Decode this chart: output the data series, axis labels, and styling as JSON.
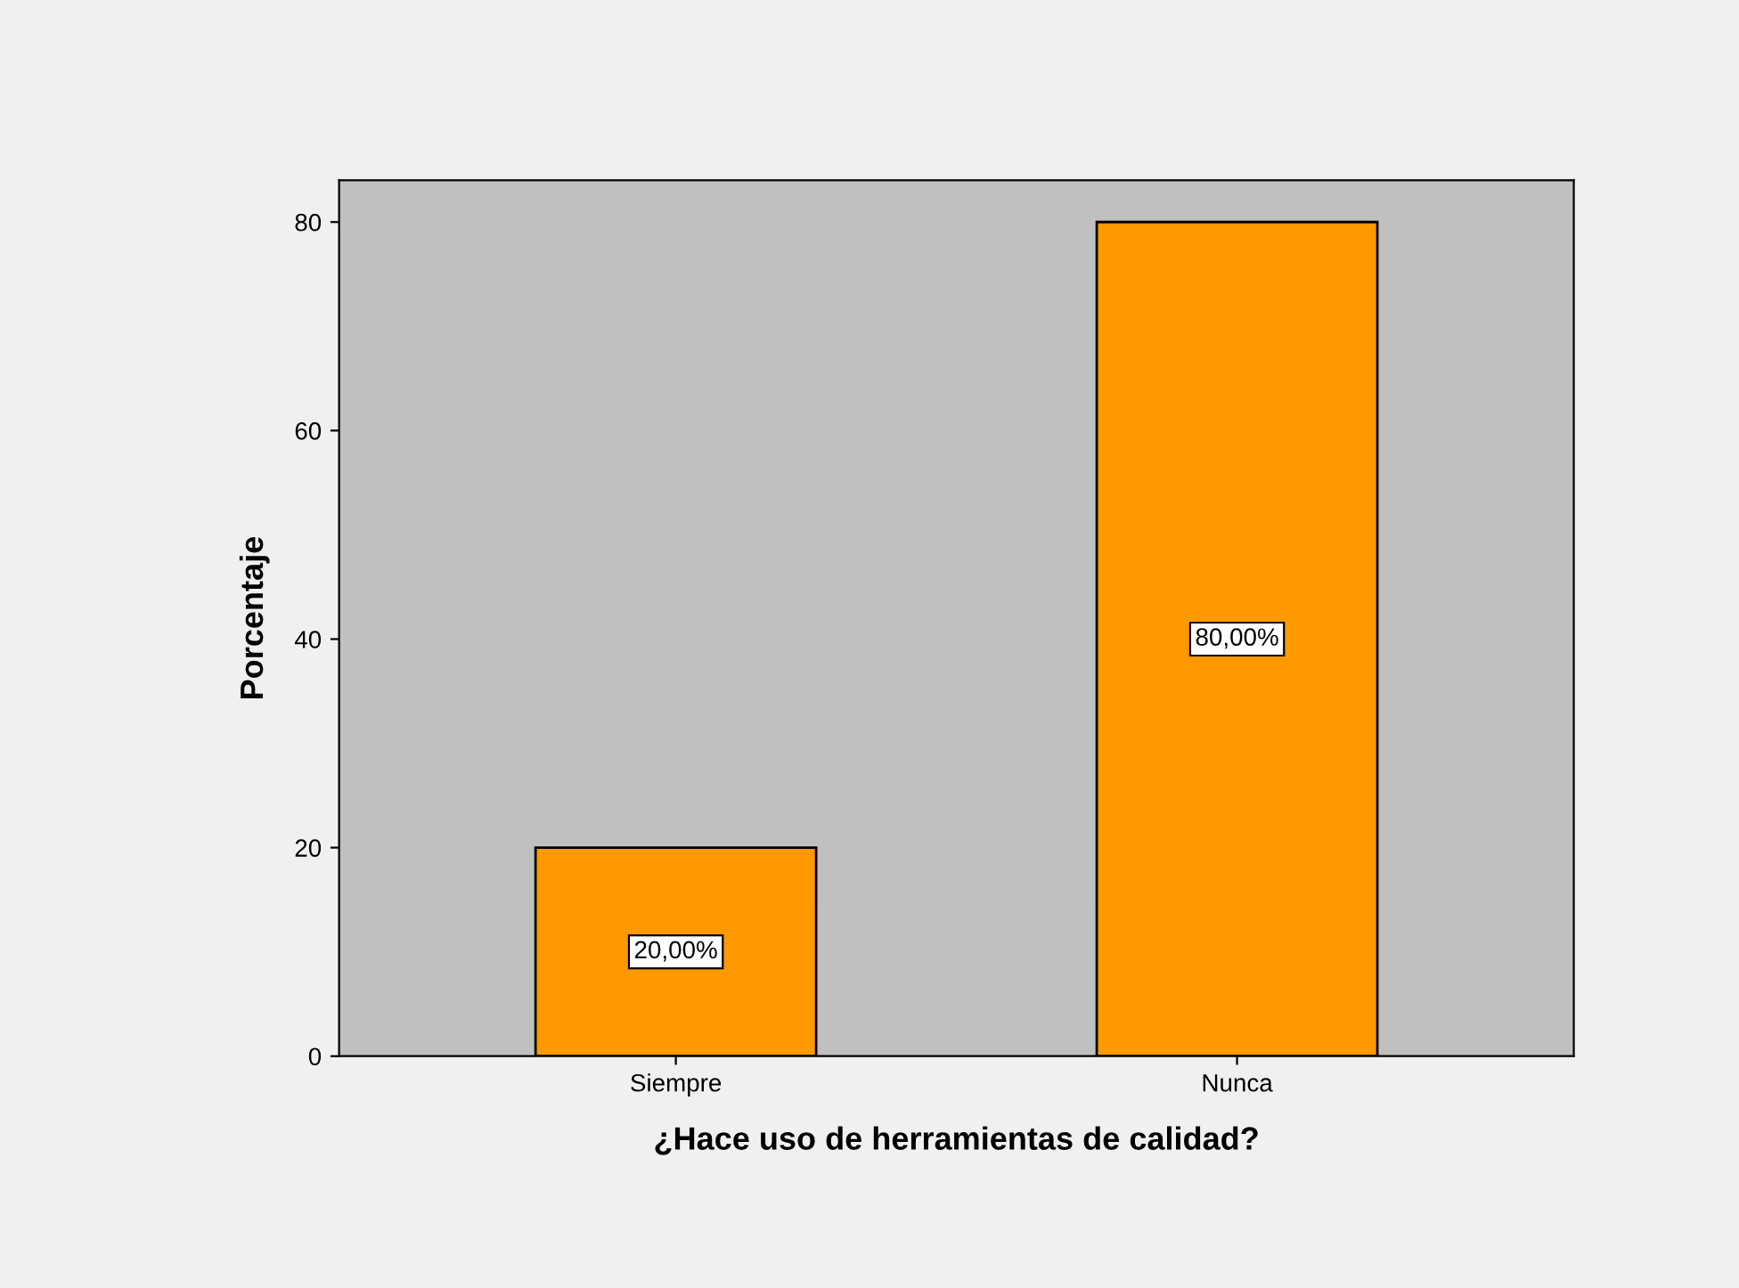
{
  "chart_data": {
    "type": "bar",
    "xlabel": "¿Hace uso de herramientas de calidad?",
    "ylabel": "Porcentaje",
    "categories": [
      "Siempre",
      "Nunca"
    ],
    "values": [
      20,
      80
    ],
    "color": "#ff9900",
    "value_labels": [
      "20,00%",
      "80,00%"
    ],
    "ylim": [
      0,
      84
    ],
    "yticks": [
      0,
      20,
      40,
      60,
      80
    ],
    "grid": false,
    "legend": false
  }
}
